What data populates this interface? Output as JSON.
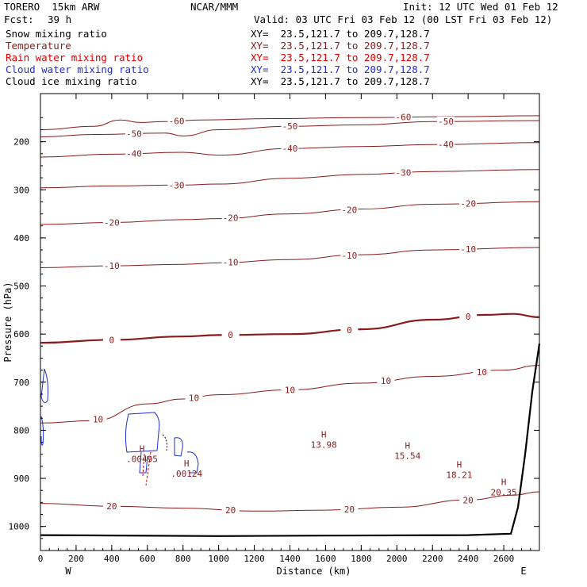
{
  "header": {
    "model": "TORERO  15km ARW",
    "org": "NCAR/MMM",
    "init": "Init: 12 UTC Wed 01 Feb 12",
    "fcst_label": "Fcst:",
    "fcst_value": "39 h",
    "valid": "Valid: 03 UTC Fri 03 Feb 12 (00 LST Fri 03 Feb 12)"
  },
  "legend": [
    {
      "name": "Snow mixing ratio",
      "xy": "XY=  23.5,121.7 to 209.7,128.7",
      "color": "#000000"
    },
    {
      "name": "Temperature",
      "xy": "XY=  23.5,121.7 to 209.7,128.7",
      "color": "#8b1a1a"
    },
    {
      "name": "Rain water mixing ratio",
      "xy": "XY=  23.5,121.7 to 209.7,128.7",
      "color": "#e00000"
    },
    {
      "name": "Cloud water mixing ratio",
      "xy": "XY=  23.5,121.7 to 209.7,128.7",
      "color": "#1f2ed6"
    },
    {
      "name": "Cloud ice mixing ratio",
      "xy": "XY=  23.5,121.7 to 209.7,128.7",
      "color": "#000000"
    }
  ],
  "chart_data": {
    "type": "line",
    "xlabel": "Distance (km)",
    "ylabel": "Pressure (hPa)",
    "xlim": [
      0,
      2800
    ],
    "ylim": [
      1050,
      100
    ],
    "x_ticks": [
      0,
      200,
      400,
      600,
      800,
      1000,
      1200,
      1400,
      1600,
      1800,
      2000,
      2200,
      2400,
      2600
    ],
    "y_ticks": [
      200,
      300,
      400,
      500,
      600,
      700,
      800,
      900,
      1000
    ],
    "x_end_labels": {
      "left": "W",
      "right": "E"
    },
    "temperature_color": "#8b1a1a",
    "isotherms": [
      {
        "value": -60,
        "labels": [
          "-60",
          "-60"
        ],
        "points": [
          [
            0,
            175
          ],
          [
            300,
            168
          ],
          [
            450,
            155
          ],
          [
            560,
            160
          ],
          [
            700,
            158
          ],
          [
            900,
            155
          ],
          [
            1300,
            152
          ],
          [
            1800,
            150
          ],
          [
            2300,
            148
          ],
          [
            2800,
            146
          ]
        ]
      },
      {
        "value": -50,
        "labels": [
          "-50",
          "-50",
          "-50"
        ],
        "points": [
          [
            0,
            190
          ],
          [
            300,
            185
          ],
          [
            700,
            182
          ],
          [
            800,
            188
          ],
          [
            1000,
            175
          ],
          [
            1400,
            168
          ],
          [
            1800,
            165
          ],
          [
            2200,
            158
          ],
          [
            2800,
            156
          ]
        ]
      },
      {
        "value": -40,
        "labels": [
          "-40",
          "-40",
          "-40"
        ],
        "points": [
          [
            0,
            232
          ],
          [
            400,
            226
          ],
          [
            800,
            222
          ],
          [
            1000,
            228
          ],
          [
            1400,
            214
          ],
          [
            1800,
            210
          ],
          [
            2200,
            206
          ],
          [
            2800,
            202
          ]
        ]
      },
      {
        "value": -30,
        "labels": [
          "-30",
          "-30"
        ],
        "points": [
          [
            0,
            296
          ],
          [
            400,
            292
          ],
          [
            800,
            290
          ],
          [
            1000,
            288
          ],
          [
            1400,
            276
          ],
          [
            1800,
            268
          ],
          [
            2200,
            262
          ],
          [
            2800,
            258
          ]
        ]
      },
      {
        "value": -20,
        "labels": [
          "-20",
          "-20",
          "-20",
          "-20"
        ],
        "points": [
          [
            0,
            372
          ],
          [
            400,
            368
          ],
          [
            800,
            362
          ],
          [
            1000,
            360
          ],
          [
            1400,
            350
          ],
          [
            1800,
            340
          ],
          [
            2200,
            330
          ],
          [
            2800,
            325
          ]
        ]
      },
      {
        "value": -10,
        "labels": [
          "-10",
          "-10",
          "-10",
          "-10"
        ],
        "points": [
          [
            0,
            462
          ],
          [
            400,
            458
          ],
          [
            800,
            455
          ],
          [
            1000,
            452
          ],
          [
            1400,
            445
          ],
          [
            1800,
            435
          ],
          [
            2200,
            425
          ],
          [
            2800,
            420
          ]
        ]
      },
      {
        "value": 0,
        "labels": [
          "0",
          "0",
          "0",
          "0"
        ],
        "points": [
          [
            0,
            618
          ],
          [
            400,
            612
          ],
          [
            800,
            605
          ],
          [
            1000,
            602
          ],
          [
            1400,
            600
          ],
          [
            1800,
            590
          ],
          [
            2200,
            570
          ],
          [
            2500,
            560
          ],
          [
            2650,
            558
          ],
          [
            2800,
            565
          ]
        ]
      },
      {
        "value": 10,
        "labels": [
          "10",
          "10",
          "10",
          "10",
          "10"
        ],
        "points": [
          [
            0,
            785
          ],
          [
            300,
            780
          ],
          [
            600,
            745
          ],
          [
            800,
            735
          ],
          [
            1000,
            726
          ],
          [
            1400,
            716
          ],
          [
            1800,
            702
          ],
          [
            2200,
            688
          ],
          [
            2600,
            675
          ],
          [
            2800,
            665
          ]
        ]
      },
      {
        "value": 20,
        "labels": [
          "20",
          "20",
          "20",
          "20"
        ],
        "points": [
          [
            0,
            952
          ],
          [
            400,
            958
          ],
          [
            800,
            962
          ],
          [
            1200,
            968
          ],
          [
            1600,
            966
          ],
          [
            2000,
            960
          ],
          [
            2400,
            945
          ],
          [
            2650,
            935
          ],
          [
            2800,
            928
          ]
        ]
      }
    ],
    "highs": [
      {
        "x": 570,
        "p": 845,
        "label": "H",
        "value": ".00495"
      },
      {
        "x": 820,
        "p": 875,
        "label": "H",
        "value": ".00124"
      },
      {
        "x": 1590,
        "p": 815,
        "label": "H",
        "value": "13.98"
      },
      {
        "x": 2060,
        "p": 838,
        "label": "H",
        "value": "15.54"
      },
      {
        "x": 2350,
        "p": 878,
        "label": "H",
        "value": "18.21"
      },
      {
        "x": 2600,
        "p": 914,
        "label": "H",
        "value": "20.35"
      }
    ],
    "terrain": {
      "color": "#000000",
      "points": [
        [
          0,
          1018
        ],
        [
          1000,
          1020
        ],
        [
          1600,
          1019
        ],
        [
          2400,
          1018
        ],
        [
          2640,
          1015
        ],
        [
          2680,
          960
        ],
        [
          2720,
          850
        ],
        [
          2760,
          720
        ],
        [
          2800,
          620
        ]
      ]
    }
  }
}
